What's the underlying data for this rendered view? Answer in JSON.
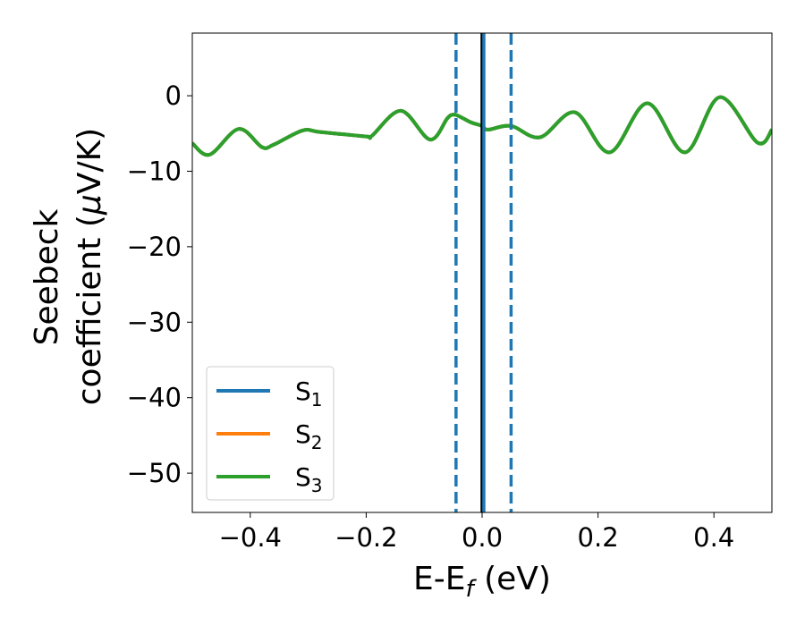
{
  "chart_data": {
    "type": "line",
    "xlabel": {
      "main": "E-E",
      "sub": "f",
      "suffix": " (eV)"
    },
    "ylabel": {
      "line1": "Seebeck",
      "line2_prefix": "coefficient  (",
      "mu": "μ",
      "line2_suffix": "V/K)"
    },
    "xlim": [
      -0.5,
      0.5
    ],
    "ylim": [
      -55.2,
      8.3
    ],
    "xticks": [
      -0.4,
      -0.2,
      0.0,
      0.2,
      0.4
    ],
    "xtick_labels": [
      "−0.4",
      "−0.2",
      "0.0",
      "0.2",
      "0.4"
    ],
    "yticks": [
      0,
      -10,
      -20,
      -30,
      -40,
      -50
    ],
    "ytick_labels": [
      "0",
      "−10",
      "−20",
      "−30",
      "−40",
      "−50"
    ],
    "grid": false,
    "legend_position": "lower-left",
    "vertical_lines": [
      {
        "x": 0.0,
        "style": "solid",
        "color": "#000000"
      },
      {
        "x": 0.003,
        "style": "solid",
        "color": "#1f77b4"
      },
      {
        "x": -0.045,
        "style": "dashed",
        "color": "#1f77b4"
      },
      {
        "x": 0.05,
        "style": "dashed",
        "color": "#1f77b4"
      }
    ],
    "x": [
      -0.5,
      -0.47,
      -0.42,
      -0.38,
      -0.36,
      -0.31,
      -0.28,
      -0.2,
      -0.19,
      -0.14,
      -0.09,
      -0.06,
      -0.05,
      -0.04,
      -0.02,
      0.0,
      0.01,
      0.05,
      0.1,
      0.16,
      0.22,
      0.285,
      0.35,
      0.41,
      0.475,
      0.5
    ],
    "series": [
      {
        "name": "S",
        "sub": "1",
        "color": "#1f77b4",
        "values": [
          -6.3,
          -7.8,
          -4.4,
          -6.8,
          -6.5,
          -4.6,
          -4.8,
          -5.4,
          -5.3,
          -2.0,
          -5.8,
          -3.0,
          -2.5,
          -2.7,
          -3.5,
          -4.0,
          -4.5,
          -4.0,
          -5.5,
          -2.2,
          -7.5,
          -1.0,
          -7.5,
          -0.2,
          -6.2,
          -4.5
        ]
      },
      {
        "name": "S",
        "sub": "2",
        "color": "#ff7f0e",
        "values": [
          -6.3,
          -7.8,
          -4.4,
          -6.8,
          -6.5,
          -4.6,
          -4.8,
          -5.4,
          -5.3,
          -2.0,
          -5.8,
          -3.0,
          -2.5,
          -2.7,
          -3.5,
          -4.0,
          -4.5,
          -4.0,
          -5.5,
          -2.2,
          -7.5,
          -1.0,
          -7.5,
          -0.2,
          -6.2,
          -4.5
        ]
      },
      {
        "name": "S",
        "sub": "3",
        "color": "#2ca02c",
        "values": [
          -6.3,
          -7.8,
          -4.4,
          -6.8,
          -6.5,
          -4.6,
          -4.8,
          -5.4,
          -5.3,
          -2.0,
          -5.8,
          -3.0,
          -2.5,
          -2.7,
          -3.5,
          -4.0,
          -4.5,
          -4.0,
          -5.5,
          -2.2,
          -7.5,
          -1.0,
          -7.5,
          -0.2,
          -6.2,
          -4.5
        ]
      }
    ]
  }
}
